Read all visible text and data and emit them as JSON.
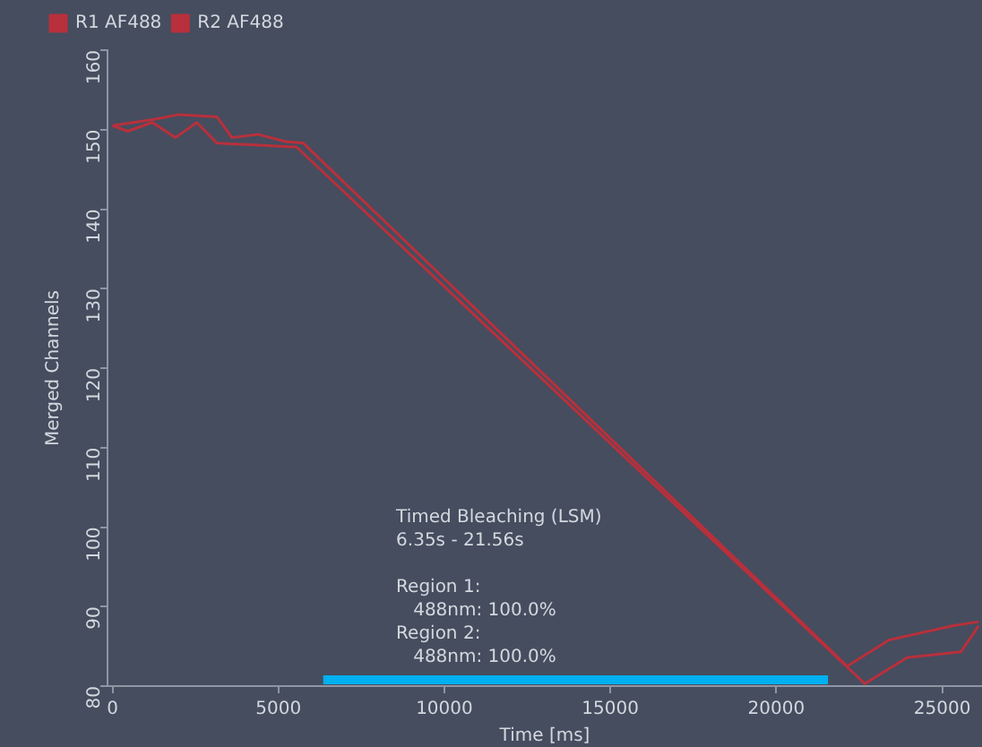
{
  "chart_data": {
    "type": "line",
    "xlabel": "Time [ms]",
    "ylabel": "Merged Channels",
    "xlim": [
      -150,
      26200
    ],
    "xticks": [
      0,
      5000,
      10000,
      15000,
      20000,
      25000
    ],
    "ylim": [
      80,
      160
    ],
    "yticks": [
      80,
      90,
      100,
      110,
      120,
      130,
      140,
      150,
      160
    ],
    "grid": false,
    "legend": "top left",
    "marker": "none",
    "line_style": "solid",
    "series": [
      {
        "name": "R1 AF488",
        "color": "#b8303c",
        "x": [
          0,
          460,
          1200,
          1900,
          2540,
          3150,
          4150,
          5550,
          22670,
          23950,
          25560,
          26100
        ],
        "values": [
          150.5,
          149.8,
          150.9,
          149,
          150.9,
          148.3,
          148.1,
          147.8,
          80.3,
          83.6,
          84.3,
          87.6
        ]
      },
      {
        "name": "R2 AF488",
        "color": "#b8303c",
        "x": [
          0,
          1260,
          2000,
          3150,
          3600,
          4400,
          5200,
          5750,
          22140,
          23400,
          25340,
          26100
        ],
        "values": [
          150.5,
          151.3,
          151.9,
          151.6,
          149,
          149.4,
          148.5,
          148.3,
          82.5,
          85.8,
          87.6,
          88.1
        ]
      },
      {
        "color": "#00b0f0",
        "x": [
          6350,
          21560
        ],
        "values": [
          80.8,
          80.8
        ]
      }
    ],
    "annotations": [
      "Timed Bleaching (LSM)\n6.35s - 21.56s",
      "Region 1:\n   488nm: 100.0%\nRegion 2:\n   488nm: 100.0%"
    ]
  }
}
